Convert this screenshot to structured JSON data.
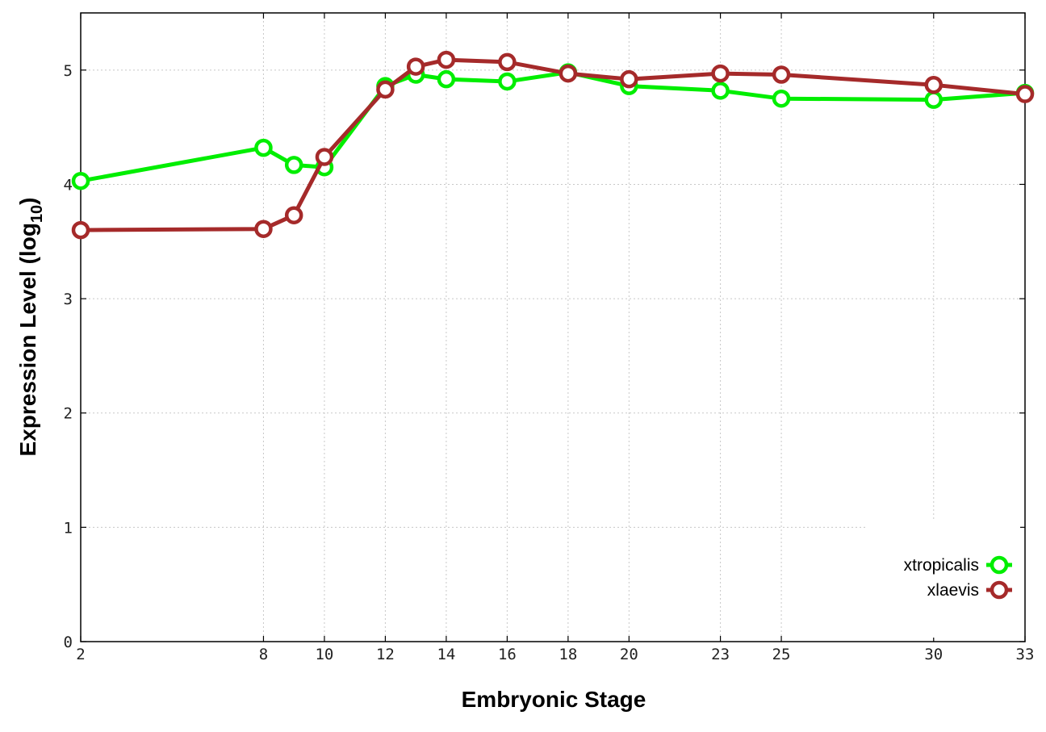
{
  "chart_data": {
    "type": "line",
    "xlabel": "Embryonic Stage",
    "ylabel_main": "Expression Level (log",
    "ylabel_sub": "10",
    "ylabel_close": ")",
    "x": [
      2,
      8,
      9,
      10,
      12,
      13,
      14,
      16,
      18,
      20,
      23,
      25,
      30,
      33
    ],
    "x_ticks": [
      2,
      8,
      10,
      12,
      14,
      16,
      18,
      20,
      23,
      25,
      30,
      33
    ],
    "xlim": [
      2,
      33
    ],
    "ylim": [
      0,
      5.5
    ],
    "y_ticks": [
      0,
      1,
      2,
      3,
      4,
      5
    ],
    "grid": true,
    "legend_position": "bottom-right",
    "series": [
      {
        "name": "xtropicalis",
        "color": "#00ee00",
        "values": [
          4.03,
          4.32,
          4.17,
          4.15,
          4.86,
          4.96,
          4.92,
          4.9,
          4.98,
          4.86,
          4.82,
          4.75,
          4.74,
          4.8
        ]
      },
      {
        "name": "xlaevis",
        "color": "#a52a2a",
        "values": [
          3.6,
          3.61,
          3.73,
          4.24,
          4.83,
          5.03,
          5.09,
          5.07,
          4.97,
          4.92,
          4.97,
          4.96,
          4.87,
          4.79
        ]
      }
    ]
  }
}
